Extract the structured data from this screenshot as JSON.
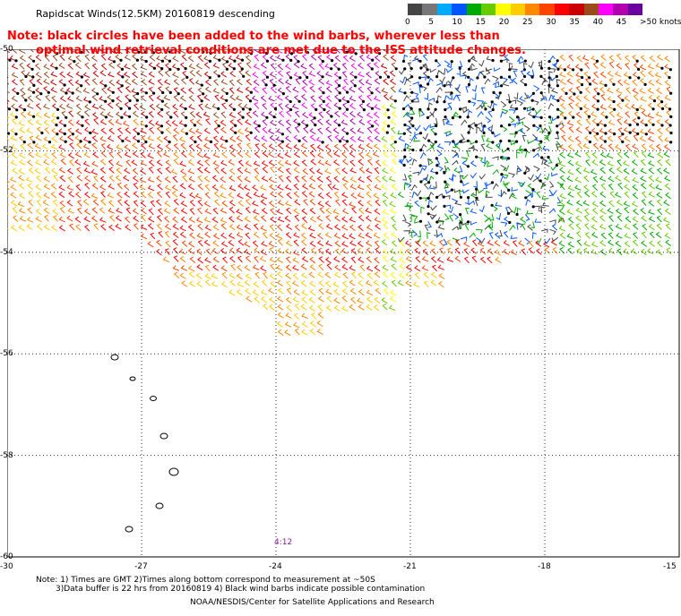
{
  "title": "Rapidscat Winds(12.5KM) 20160819 descending",
  "note_line1": "Note: black circles have been added to the wind barbs, wherever less than",
  "note_line2": "optimal wind retrieval conditions are met due to the ISS attitude changes.",
  "colorbar": {
    "colors": [
      "#444444",
      "#777777",
      "#00aaff",
      "#0055ff",
      "#00aa00",
      "#66cc00",
      "#ffff00",
      "#ffcc00",
      "#ff8800",
      "#ff4400",
      "#ff0000",
      "#cc0000",
      "#9b4a1a",
      "#ff00ff",
      "#b000b0",
      "#6a00a0"
    ],
    "labels": [
      "0",
      "5",
      "10",
      "15",
      "20",
      "25",
      "30",
      "35",
      "40",
      "45",
      ">50 knots"
    ],
    "label_values": [
      0,
      5,
      10,
      15,
      20,
      25,
      30,
      35,
      40,
      45,
      50
    ]
  },
  "lat_labels": [
    "-50",
    "-52",
    "-54",
    "-56",
    "-58",
    "-60"
  ],
  "lon_labels": [
    "-30",
    "-27",
    "-24",
    "-21",
    "-18",
    "-15"
  ],
  "time_label": "4:12",
  "footer_line1": "Note: 1) Times are GMT 2)Times along bottom correspond to measurement at ~50S",
  "footer_line2": "3)Data buffer is 22 hrs from 20160819 4) Black wind barbs indicate possible contamination",
  "footer_line3": "NOAA/NESDIS/Center for Satellite Applications and Research",
  "map": {
    "lon_range": [
      -30,
      -15
    ],
    "lat_range": [
      -60,
      -50
    ]
  }
}
